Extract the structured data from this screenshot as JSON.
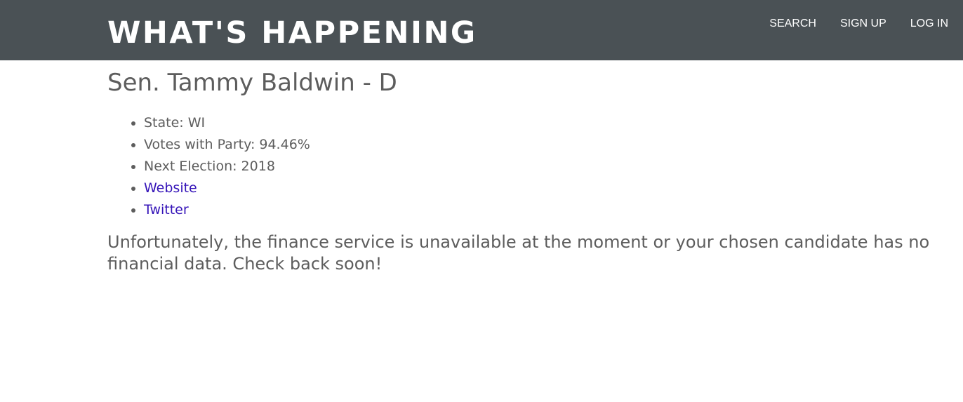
{
  "header": {
    "brand": "WHAT'S HAPPENING",
    "nav": [
      {
        "label": "SEARCH"
      },
      {
        "label": "SIGN UP"
      },
      {
        "label": "LOG IN"
      }
    ]
  },
  "senator": {
    "title": "Sen. Tammy Baldwin - D",
    "state": "State: WI",
    "votes_with_party": "Votes with Party: 94.46%",
    "next_election": "Next Election: 2018",
    "website_label": "Website",
    "twitter_label": "Twitter"
  },
  "finance_notice": "Unfortunately, the finance service is unavailable at the moment or your chosen candidate has no financial data. Check back soon!",
  "colors": {
    "navbar_bg": "#4a5155",
    "text": "#5d5d5d",
    "link": "#3413b8"
  }
}
